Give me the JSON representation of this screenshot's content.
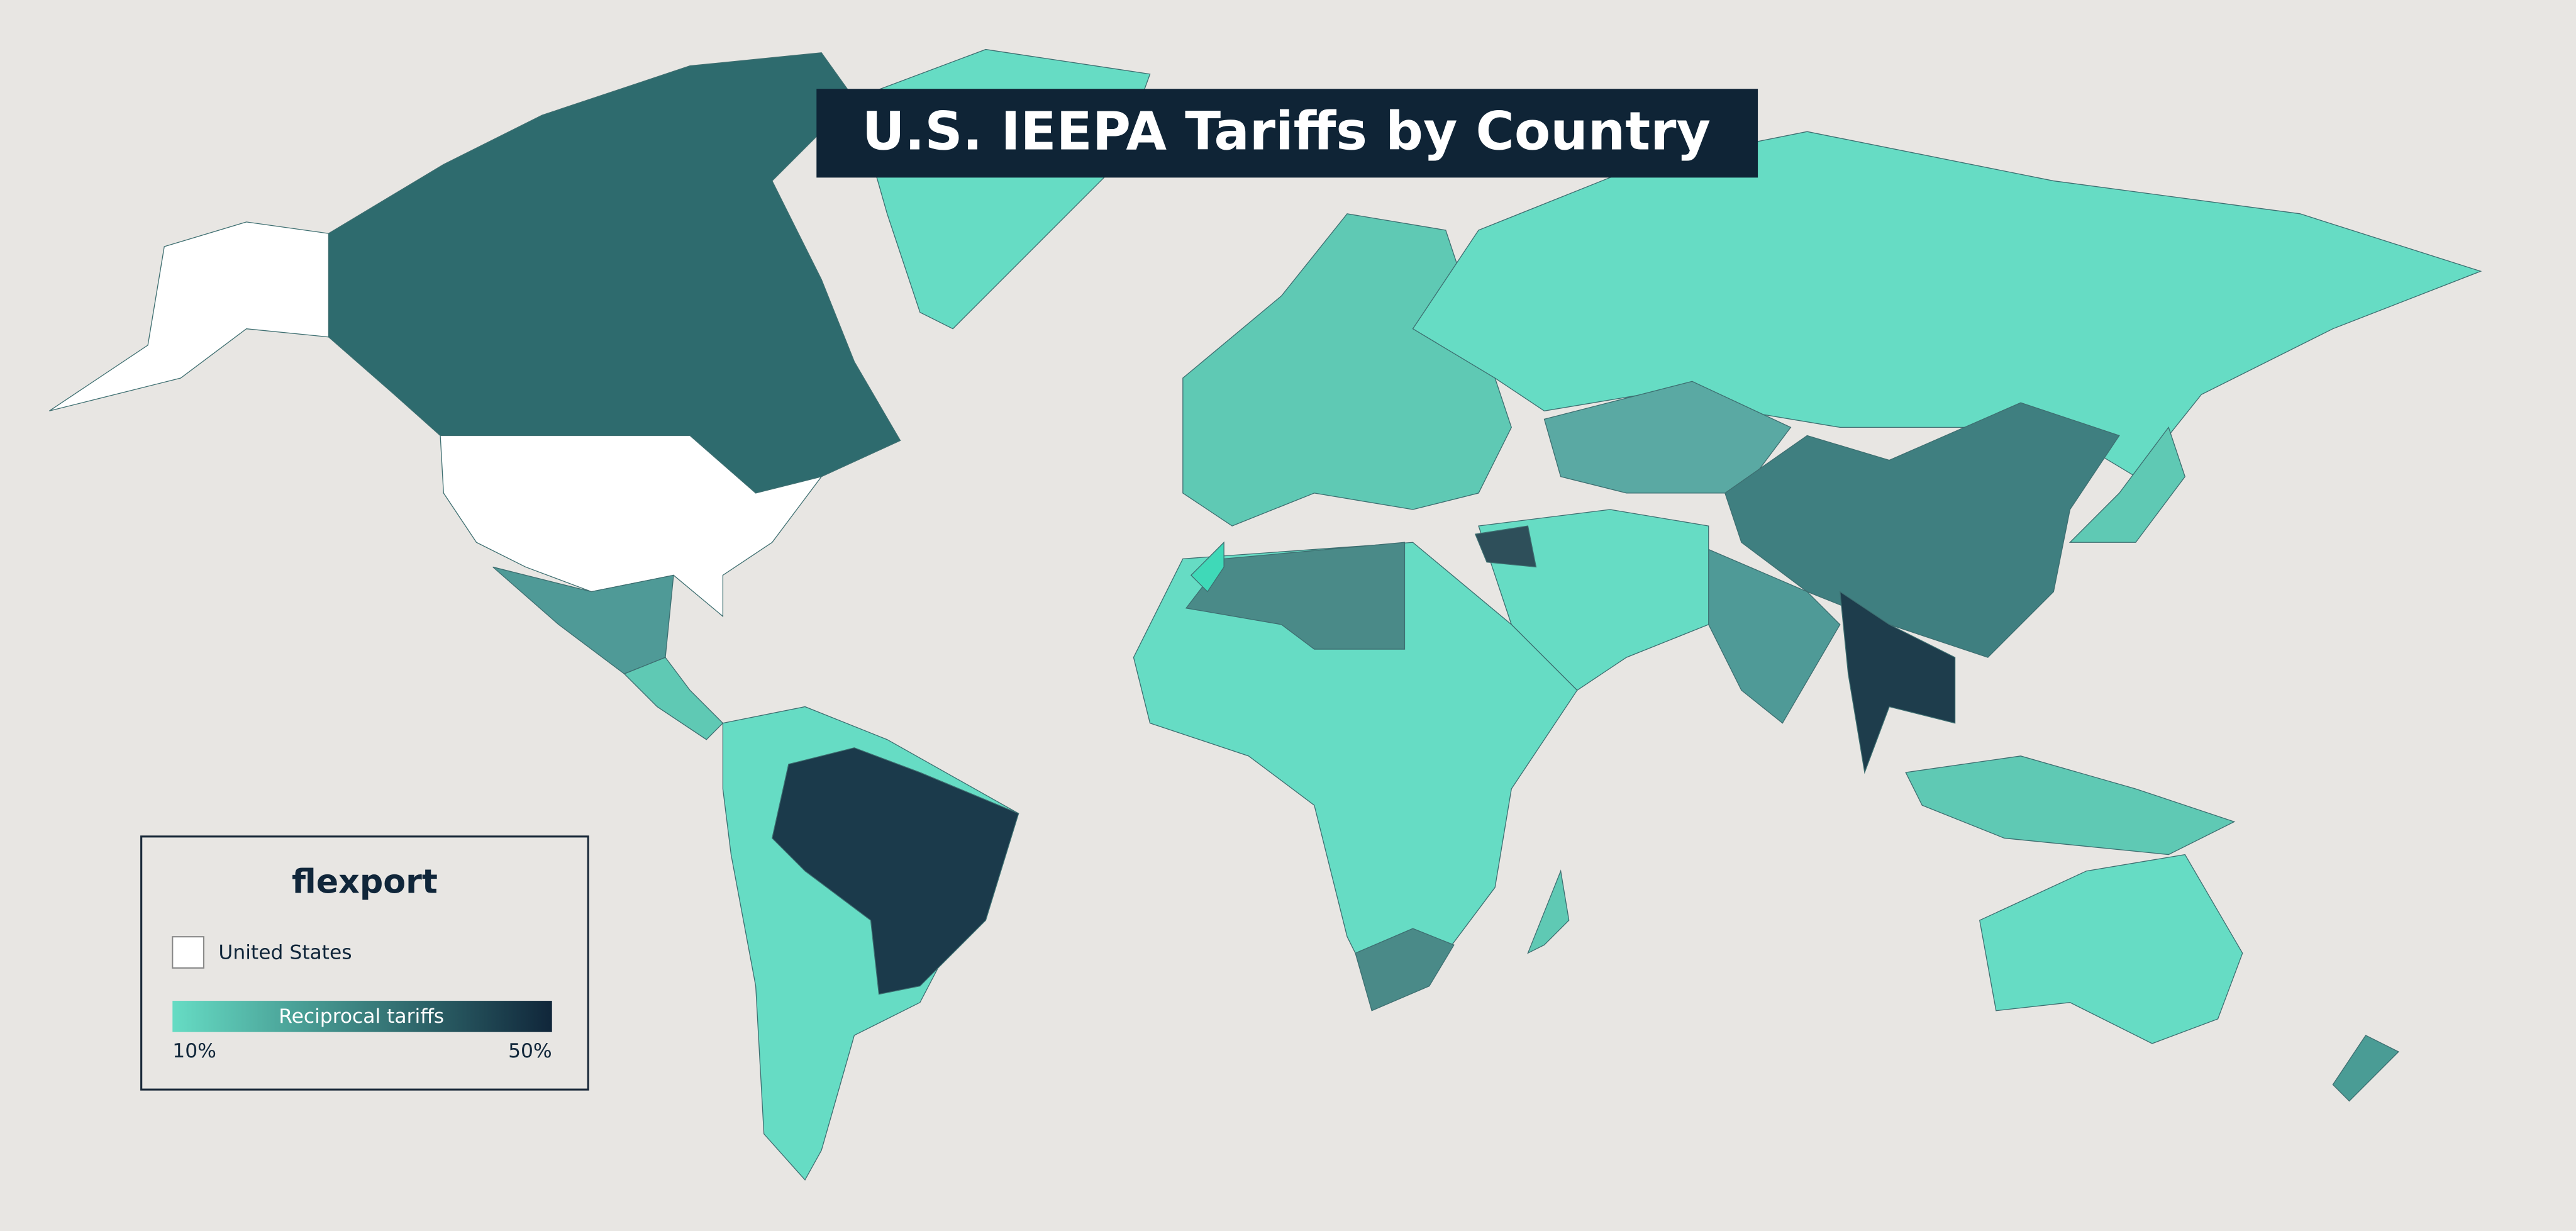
{
  "title": "U.S. IEEPA Tariffs by Country",
  "legend": {
    "brand": "flexport",
    "white_label": "United States",
    "scale_label": "Reciprocal tariffs",
    "min_label": "10%",
    "max_label": "50%"
  }
}
